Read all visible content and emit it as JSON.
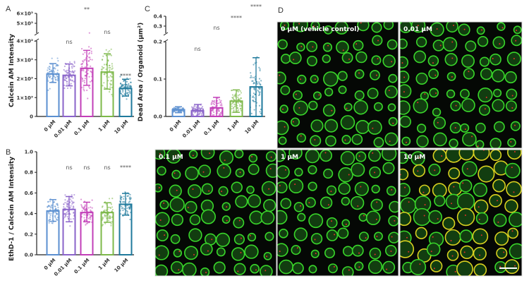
{
  "panel_labels": {
    "A": "A",
    "B": "B",
    "C": "C",
    "D": "D"
  },
  "chart_data": [
    {
      "id": "A",
      "type": "bar",
      "ylabel": "Calcein AM Intensity",
      "categories": [
        "0 µM",
        "0.01 µM",
        "0.1 µM",
        "1 µM",
        "10 µM"
      ],
      "yticks": [
        0,
        1000,
        2000,
        3000,
        4000,
        5000,
        6000
      ],
      "ytick_labels": [
        "0",
        "1×10³",
        "2×10³",
        "3×10³",
        "4×10³",
        "5×10³",
        "6×10³"
      ],
      "broken_axis": [
        4000,
        5000
      ],
      "ylim": [
        0,
        6000
      ],
      "means": [
        2250,
        2180,
        2550,
        2350,
        1480
      ],
      "err_upper": [
        2800,
        2780,
        3500,
        3320,
        1970
      ],
      "err_lower": [
        1800,
        1620,
        1650,
        1450,
        1080
      ],
      "significance": [
        "",
        "ns",
        "**",
        "ns",
        "****"
      ]
    },
    {
      "id": "B",
      "type": "bar",
      "ylabel": "EthD-1 / Calcein AM Intensity",
      "categories": [
        "0 µM",
        "0.01 µM",
        "0.1 µM",
        "1 µM",
        "10 µM"
      ],
      "yticks": [
        0,
        0.2,
        0.4,
        0.6,
        0.8,
        1.0
      ],
      "ytick_labels": [
        "0.0",
        "0.2",
        "0.4",
        "0.6",
        "0.8",
        "1.0"
      ],
      "ylim": [
        0,
        1.0
      ],
      "means": [
        0.425,
        0.44,
        0.41,
        0.41,
        0.49
      ],
      "err_upper": [
        0.535,
        0.565,
        0.51,
        0.505,
        0.595
      ],
      "err_lower": [
        0.325,
        0.32,
        0.32,
        0.315,
        0.385
      ],
      "significance": [
        "",
        "ns",
        "ns",
        "ns",
        "****"
      ]
    },
    {
      "id": "C",
      "type": "bar",
      "ylabel": "Dead Area / Organoid (µm²)",
      "categories": [
        "0 µM",
        "0.01 µM",
        "0.1 µM",
        "1 µM",
        "10 µM"
      ],
      "yticks": [
        0,
        0.1,
        0.2,
        0.3,
        0.4
      ],
      "ytick_labels": [
        "0.0",
        "0.1",
        "0.2",
        "0.3",
        "0.4"
      ],
      "broken_axis": [
        0.2,
        0.3
      ],
      "ylim": [
        0,
        0.4
      ],
      "means": [
        0.018,
        0.015,
        0.023,
        0.041,
        0.079
      ],
      "err_upper": [
        0.026,
        0.032,
        0.051,
        0.071,
        0.157
      ],
      "err_lower": [
        0.01,
        0.0,
        0.0,
        0.011,
        0.0
      ],
      "significance": [
        "",
        "ns",
        "ns",
        "****",
        "****"
      ]
    }
  ],
  "colors": {
    "series": [
      "#5b8fd0",
      "#8a63c9",
      "#c23fb8",
      "#7db84a",
      "#1f7a9c"
    ],
    "sig": "#555555"
  },
  "images": [
    {
      "label": "0 µM (vehicle control)",
      "edge": "#39d62a"
    },
    {
      "label": "0.01 µM",
      "edge": "#39d62a"
    },
    {
      "label": "0.1 µM",
      "edge": "#39d62a"
    },
    {
      "label": "1 µM",
      "edge": "#6fd42a"
    },
    {
      "label": "10 µM",
      "edge": "#d8d020"
    }
  ]
}
